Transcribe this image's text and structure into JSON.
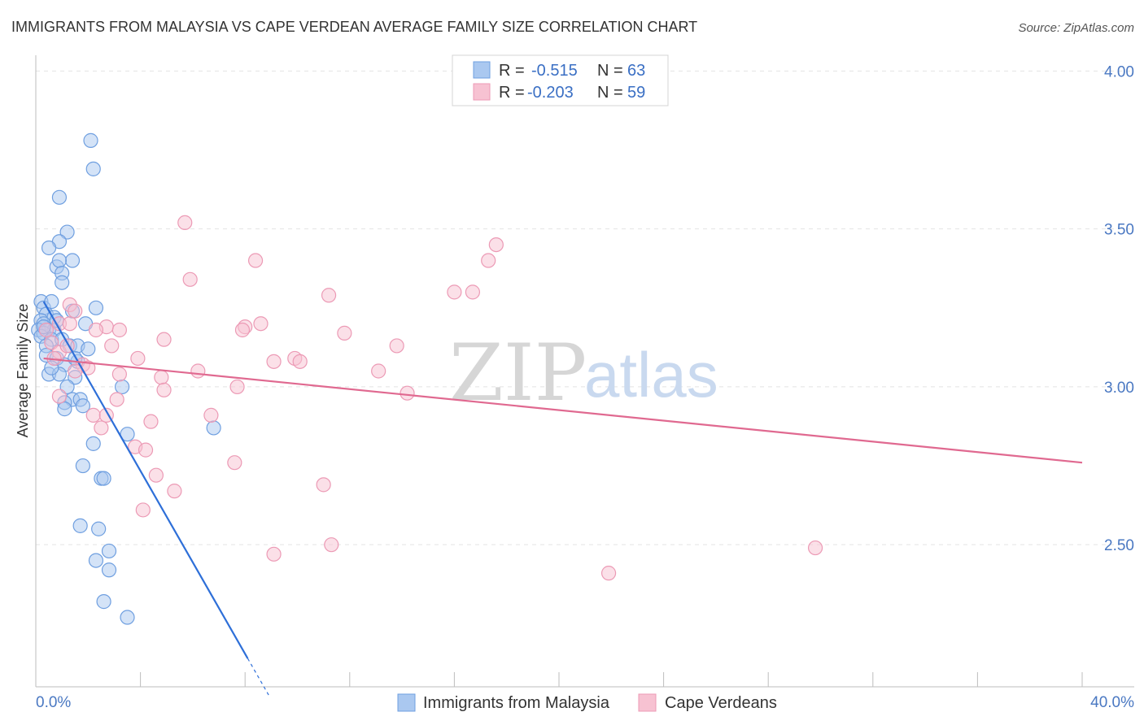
{
  "title": "IMMIGRANTS FROM MALAYSIA VS CAPE VERDEAN AVERAGE FAMILY SIZE CORRELATION CHART",
  "source": "Source: ZipAtlas.com",
  "watermark": {
    "zip": "ZIP",
    "atlas": "atlas"
  },
  "colors": {
    "blue_fill": "#aac8f0",
    "blue_stroke": "#6f9fe0",
    "blue_line": "#2e6fd8",
    "pink_fill": "#f7c2d2",
    "pink_stroke": "#ec9ab5",
    "pink_line": "#e06990",
    "grid": "#e3e3e3",
    "axis_text": "#4a78c2"
  },
  "legend": {
    "rows": [
      {
        "r_label": "R = ",
        "r_value": "-0.515",
        "n_label": "N = ",
        "n_value": "63"
      },
      {
        "r_label": "R = ",
        "r_value": "-0.203",
        "n_label": "N = ",
        "n_value": "59"
      }
    ]
  },
  "bottom_legend": [
    "Immigrants from Malaysia",
    "Cape Verdeans"
  ],
  "chart_data": {
    "type": "scatter",
    "title": "IMMIGRANTS FROM MALAYSIA VS CAPE VERDEAN AVERAGE FAMILY SIZE CORRELATION CHART",
    "xlabel": "",
    "ylabel": "Average Family Size",
    "xlim": [
      0,
      40
    ],
    "ylim": [
      2.05,
      4.05
    ],
    "x_tick_labels": [
      "0.0%",
      "40.0%"
    ],
    "y_ticks": [
      2.5,
      3.0,
      3.5,
      4.0
    ],
    "y_tick_labels": [
      "2.50",
      "3.00",
      "3.50",
      "4.00"
    ],
    "series": [
      {
        "name": "Immigrants from Malaysia",
        "r": -0.515,
        "n": 63,
        "trend": {
          "x0": 0.3,
          "y0": 3.27,
          "x1": 8.1,
          "y1": 2.14,
          "dash_x1": 8.9
        },
        "points": [
          [
            2.1,
            3.78
          ],
          [
            2.2,
            3.69
          ],
          [
            0.9,
            3.6
          ],
          [
            1.2,
            3.49
          ],
          [
            0.9,
            3.46
          ],
          [
            0.5,
            3.44
          ],
          [
            1.4,
            3.4
          ],
          [
            0.8,
            3.38
          ],
          [
            0.9,
            3.4
          ],
          [
            1.0,
            3.36
          ],
          [
            1.0,
            3.33
          ],
          [
            0.2,
            3.27
          ],
          [
            0.3,
            3.25
          ],
          [
            0.6,
            3.27
          ],
          [
            2.3,
            3.25
          ],
          [
            1.4,
            3.24
          ],
          [
            0.4,
            3.23
          ],
          [
            0.7,
            3.22
          ],
          [
            0.2,
            3.21
          ],
          [
            0.3,
            3.2
          ],
          [
            1.9,
            3.2
          ],
          [
            0.5,
            3.18
          ],
          [
            0.7,
            3.18
          ],
          [
            0.1,
            3.18
          ],
          [
            0.3,
            3.17
          ],
          [
            0.2,
            3.16
          ],
          [
            0.6,
            3.15
          ],
          [
            1.0,
            3.15
          ],
          [
            0.4,
            3.13
          ],
          [
            1.3,
            3.13
          ],
          [
            1.6,
            3.13
          ],
          [
            2.0,
            3.12
          ],
          [
            0.4,
            3.1
          ],
          [
            0.8,
            3.09
          ],
          [
            1.6,
            3.08
          ],
          [
            1.1,
            3.07
          ],
          [
            0.5,
            3.04
          ],
          [
            0.9,
            3.04
          ],
          [
            1.5,
            3.03
          ],
          [
            1.2,
            3.0
          ],
          [
            3.3,
            3.0
          ],
          [
            1.4,
            2.96
          ],
          [
            1.7,
            2.96
          ],
          [
            1.1,
            2.95
          ],
          [
            1.8,
            2.94
          ],
          [
            1.1,
            2.93
          ],
          [
            3.5,
            2.85
          ],
          [
            6.8,
            2.87
          ],
          [
            2.2,
            2.82
          ],
          [
            1.8,
            2.75
          ],
          [
            2.5,
            2.71
          ],
          [
            2.6,
            2.71
          ],
          [
            1.7,
            2.56
          ],
          [
            2.4,
            2.55
          ],
          [
            2.8,
            2.48
          ],
          [
            2.3,
            2.45
          ],
          [
            2.8,
            2.42
          ],
          [
            2.6,
            2.32
          ],
          [
            3.5,
            2.27
          ],
          [
            0.6,
            3.06
          ],
          [
            1.5,
            3.09
          ],
          [
            0.3,
            3.19
          ],
          [
            0.8,
            3.21
          ]
        ]
      },
      {
        "name": "Cape Verdeans",
        "r": -0.203,
        "n": 59,
        "trend": {
          "x0": 0.3,
          "y0": 3.09,
          "x1": 40.0,
          "y1": 2.76
        },
        "points": [
          [
            5.7,
            3.52
          ],
          [
            17.6,
            3.45
          ],
          [
            8.4,
            3.4
          ],
          [
            17.3,
            3.4
          ],
          [
            5.9,
            3.34
          ],
          [
            16.0,
            3.3
          ],
          [
            11.2,
            3.29
          ],
          [
            1.3,
            3.26
          ],
          [
            1.5,
            3.24
          ],
          [
            0.9,
            3.2
          ],
          [
            1.3,
            3.2
          ],
          [
            2.7,
            3.19
          ],
          [
            8.6,
            3.2
          ],
          [
            8.0,
            3.19
          ],
          [
            7.9,
            3.18
          ],
          [
            2.3,
            3.18
          ],
          [
            3.2,
            3.18
          ],
          [
            11.8,
            3.17
          ],
          [
            4.9,
            3.15
          ],
          [
            0.6,
            3.14
          ],
          [
            13.8,
            3.13
          ],
          [
            2.9,
            3.13
          ],
          [
            0.9,
            3.11
          ],
          [
            0.7,
            3.09
          ],
          [
            3.9,
            3.09
          ],
          [
            9.9,
            3.09
          ],
          [
            9.1,
            3.08
          ],
          [
            10.1,
            3.08
          ],
          [
            1.8,
            3.07
          ],
          [
            2.0,
            3.06
          ],
          [
            6.2,
            3.05
          ],
          [
            13.1,
            3.05
          ],
          [
            3.2,
            3.04
          ],
          [
            4.8,
            3.03
          ],
          [
            7.7,
            3.0
          ],
          [
            4.9,
            2.99
          ],
          [
            14.2,
            2.98
          ],
          [
            0.9,
            2.97
          ],
          [
            3.1,
            2.96
          ],
          [
            6.7,
            2.91
          ],
          [
            2.2,
            2.91
          ],
          [
            2.7,
            2.91
          ],
          [
            4.4,
            2.89
          ],
          [
            2.5,
            2.87
          ],
          [
            3.8,
            2.81
          ],
          [
            4.2,
            2.8
          ],
          [
            7.6,
            2.76
          ],
          [
            4.6,
            2.72
          ],
          [
            11.0,
            2.69
          ],
          [
            5.3,
            2.67
          ],
          [
            4.1,
            2.61
          ],
          [
            11.3,
            2.5
          ],
          [
            9.1,
            2.47
          ],
          [
            29.8,
            2.49
          ],
          [
            21.9,
            2.41
          ],
          [
            16.7,
            3.3
          ],
          [
            1.5,
            3.05
          ],
          [
            0.4,
            3.18
          ],
          [
            1.2,
            3.13
          ]
        ]
      }
    ]
  }
}
